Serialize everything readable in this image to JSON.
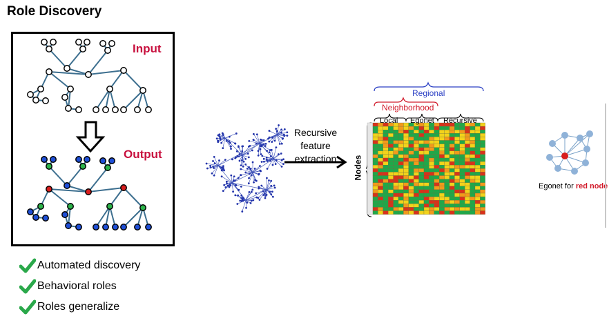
{
  "title": "Role Discovery",
  "panel": {
    "input_label": "Input",
    "output_label": "Output"
  },
  "checklist": [
    {
      "label": "Automated discovery"
    },
    {
      "label": "Behavioral roles"
    },
    {
      "label": "Roles generalize"
    }
  ],
  "arrow_caption": "Recursive feature extraction",
  "matrix": {
    "row_label": "Nodes",
    "regional_label": "Regional",
    "neighborhood_label": "Neighborhood",
    "local_label": "Local",
    "egonet_label": "Egonet",
    "recursive_label": "Recursive"
  },
  "egonet": {
    "caption_prefix": "Egonet for ",
    "caption_highlight": "red node"
  },
  "colors": {
    "accent_red": "#c8103e",
    "node_blue": "#1f4fd6",
    "node_green": "#2db34a",
    "node_red": "#d81e1e",
    "edge": "#3d6f8f",
    "check_green": "#2aa84a",
    "heat_green": "#1fa84a",
    "heat_yellow": "#f2d31b",
    "heat_orange": "#f29a1b",
    "heat_red": "#d8321b"
  }
}
